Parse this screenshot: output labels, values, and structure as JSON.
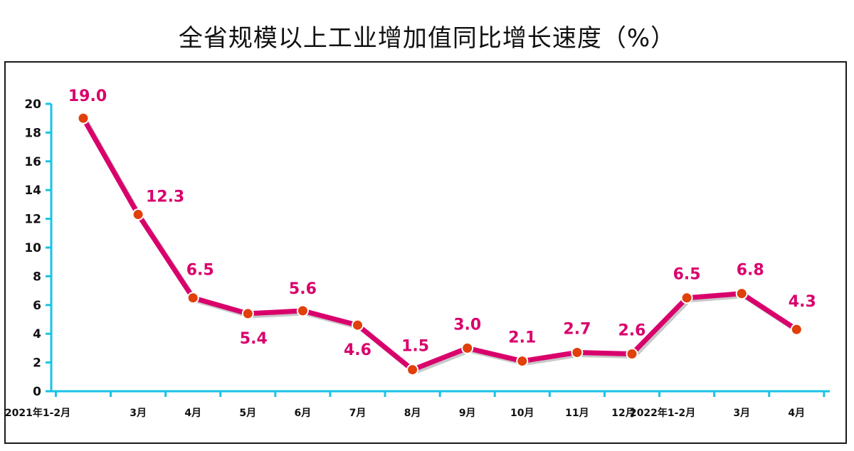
{
  "chart_data": {
    "type": "line",
    "title": "全省规模以上工业增加值同比增长速度（%）",
    "categories": [
      "2021年1-2月",
      "3月",
      "4月",
      "5月",
      "6月",
      "7月",
      "8月",
      "9月",
      "10月",
      "11月",
      "12月",
      "2022年1-2月",
      "3月",
      "4月"
    ],
    "series": [
      {
        "values": [
          19.0,
          12.3,
          6.5,
          5.4,
          5.6,
          4.6,
          1.5,
          3.0,
          2.1,
          2.7,
          2.6,
          6.5,
          6.8,
          4.3
        ]
      }
    ],
    "data_labels": [
      "19.0",
      "12.3",
      "6.5",
      "5.4",
      "5.6",
      "4.6",
      "1.5",
      "3.0",
      "2.1",
      "2.7",
      "2.6",
      "6.5",
      "6.8",
      "4.3"
    ],
    "yticks": [
      "0",
      "2",
      "4",
      "6",
      "8",
      "10",
      "12",
      "14",
      "16",
      "18",
      "20"
    ],
    "ylim": [
      0,
      20
    ],
    "grid": false,
    "legend": "none",
    "colors": {
      "line": "#d9006c",
      "marker": "#e0400a",
      "marker_edge": "#ffffff",
      "label": "#d9006c",
      "axis": "#19c3e6"
    }
  }
}
